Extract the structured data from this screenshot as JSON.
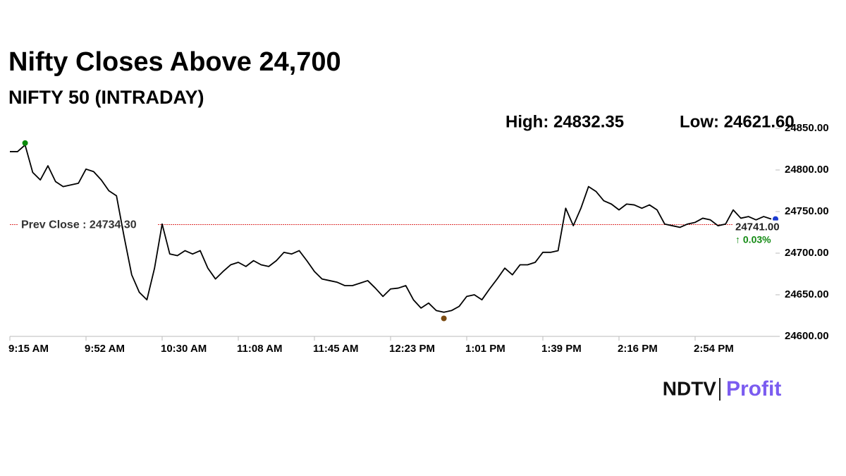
{
  "chart_data": {
    "type": "line",
    "title": "Nifty Closes Above 24,700",
    "subtitle": "NIFTY 50 (INTRADAY)",
    "high": {
      "value": 24832.35,
      "label": "High: 24832.35"
    },
    "low": {
      "value": 24621.6,
      "label": "Low: 24621.60"
    },
    "prev_close": {
      "value": 24734.3,
      "label": "Prev Close : 24734.30"
    },
    "last": {
      "value": 24741,
      "label": "24741.00"
    },
    "change": "↑ 0.03%",
    "categories": [
      "9:15 AM",
      null,
      null,
      null,
      null,
      null,
      null,
      null,
      null,
      null,
      "9:52 AM",
      null,
      null,
      null,
      null,
      null,
      null,
      null,
      null,
      null,
      "10:30 AM",
      null,
      null,
      null,
      null,
      null,
      null,
      null,
      null,
      null,
      "11:08 AM",
      null,
      null,
      null,
      null,
      null,
      null,
      null,
      null,
      null,
      "11:45 AM",
      null,
      null,
      null,
      null,
      null,
      null,
      null,
      null,
      null,
      "12:23 PM",
      null,
      null,
      null,
      null,
      null,
      null,
      null,
      null,
      null,
      "1:01 PM",
      null,
      null,
      null,
      null,
      null,
      null,
      null,
      null,
      null,
      "1:39 PM",
      null,
      null,
      null,
      null,
      null,
      null,
      null,
      null,
      null,
      "2:16 PM",
      null,
      null,
      null,
      null,
      null,
      null,
      null,
      null,
      null,
      "2:54 PM",
      null,
      null,
      null,
      null,
      null,
      null,
      null,
      null,
      null,
      null
    ],
    "series": [
      {
        "name": "NIFTY 50",
        "color": "#000000",
        "values": [
          24822,
          24822,
          24830,
          24797,
          24788,
          24805,
          24786,
          24780,
          24782,
          24784,
          24801,
          24798,
          24788,
          24775,
          24769,
          24720,
          24674,
          24653,
          24644,
          24682,
          24735,
          24699,
          24697,
          24703,
          24699,
          24703,
          24682,
          24669,
          24678,
          24686,
          24689,
          24684,
          24691,
          24686,
          24684,
          24691,
          24701,
          24699,
          24703,
          24691,
          24678,
          24669,
          24667,
          24665,
          24661,
          24661,
          24664,
          24667,
          24658,
          24648,
          24657,
          24658,
          24661,
          24644,
          24634,
          24640,
          24631,
          24629,
          24631,
          24636,
          24648,
          24650,
          24644,
          24657,
          24669,
          24682,
          24674,
          24686,
          24686,
          24689,
          24701,
          24701,
          24703,
          24754,
          24733,
          24754,
          24780,
          24774,
          24763,
          24759,
          24752,
          24759,
          24758,
          24754,
          24758,
          24752,
          24735,
          24733,
          24731,
          24735,
          24737,
          24742,
          24740,
          24733,
          24735,
          24752,
          24742,
          24744,
          24740,
          24744,
          24741
        ]
      }
    ],
    "ylim": [
      24600,
      24850
    ],
    "yticks": [
      {
        "value": 24600,
        "label": "24600.00"
      },
      {
        "value": 24650,
        "label": "24650.00"
      },
      {
        "value": 24700,
        "label": "24700.00"
      },
      {
        "value": 24750,
        "label": "24750.00"
      },
      {
        "value": 24800,
        "label": "24800.00"
      },
      {
        "value": 24850,
        "label": "24850.00"
      }
    ],
    "brand": [
      "NDTV",
      "Profit"
    ]
  }
}
